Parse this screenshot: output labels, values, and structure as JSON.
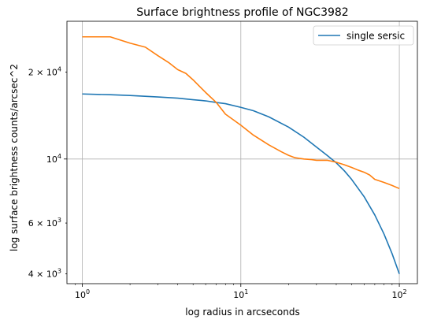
{
  "chart_data": {
    "type": "line",
    "title": "Surface brightness profile of NGC3982",
    "xlabel": "log radius in arcseconds",
    "ylabel": "log surface brightness counts/arcsec^2",
    "xscale": "log",
    "yscale": "log",
    "xlim": [
      0.8,
      130
    ],
    "ylim": [
      3700,
      30000
    ],
    "grid": "major",
    "legend_placement": "top-right",
    "x_major_ticks": [
      {
        "value": 1,
        "base": "10",
        "exp": "0"
      },
      {
        "value": 10,
        "base": "10",
        "exp": "1"
      },
      {
        "value": 100,
        "base": "10",
        "exp": "2"
      }
    ],
    "y_ticks": [
      {
        "value": 4000,
        "coef": "4 × ",
        "base": "10",
        "exp": "3"
      },
      {
        "value": 6000,
        "coef": "6 × ",
        "base": "10",
        "exp": "3"
      },
      {
        "value": 10000,
        "coef": "",
        "base": "10",
        "exp": "4"
      },
      {
        "value": 20000,
        "coef": "2 × ",
        "base": "10",
        "exp": "4"
      }
    ],
    "series": [
      {
        "name": "single sersic",
        "color": "#1f77b4",
        "x": [
          1,
          1.5,
          2,
          3,
          4,
          5,
          6,
          7,
          8,
          10,
          12,
          15,
          20,
          25,
          30,
          35,
          40,
          45,
          50,
          60,
          70,
          80,
          90,
          100
        ],
        "y": [
          16800,
          16700,
          16600,
          16400,
          16250,
          16050,
          15900,
          15700,
          15550,
          15100,
          14700,
          14000,
          12900,
          11900,
          11000,
          10300,
          9700,
          9100,
          8500,
          7400,
          6400,
          5500,
          4700,
          4000
        ]
      },
      {
        "name": "",
        "color": "#ff7f0e",
        "x": [
          1,
          1.2,
          1.5,
          2,
          2.5,
          3,
          3.5,
          4,
          4.5,
          5,
          6,
          7,
          8,
          10,
          12,
          15,
          18,
          20,
          22,
          25,
          28,
          30,
          35,
          40,
          45,
          50,
          55,
          60,
          65,
          70,
          80,
          90,
          100
        ],
        "y": [
          26500,
          26500,
          26500,
          25200,
          24400,
          22800,
          21600,
          20400,
          19800,
          18800,
          17000,
          15700,
          14300,
          13100,
          12100,
          11200,
          10600,
          10300,
          10100,
          10000,
          9950,
          9900,
          9900,
          9750,
          9550,
          9350,
          9150,
          9000,
          8800,
          8500,
          8300,
          8100,
          7900
        ]
      }
    ]
  }
}
